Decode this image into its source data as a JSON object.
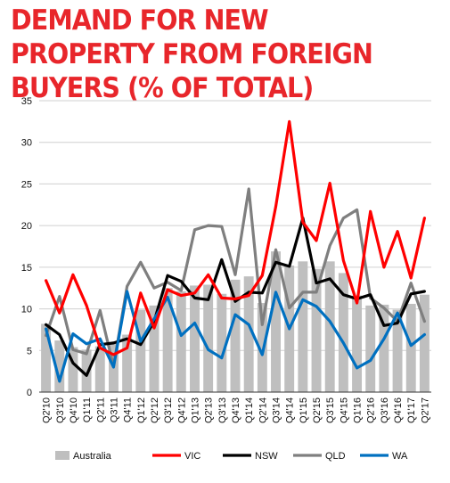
{
  "chart_data": {
    "type": "bar+line",
    "title": "DEMAND FOR NEW PROPERTY FROM FOREIGN BUYERS (% OF TOTAL)",
    "categories": [
      "Q2'10",
      "Q3'10",
      "Q4'10",
      "Q1'11",
      "Q2'11",
      "Q3'11",
      "Q4'11",
      "Q1'12",
      "Q2'12",
      "Q3'12",
      "Q4'12",
      "Q1'13",
      "Q2'13",
      "Q3'13",
      "Q4'13",
      "Q1'14",
      "Q2'14",
      "Q3'14",
      "Q4'14",
      "Q1'15",
      "Q2'15",
      "Q3'15",
      "Q4'15",
      "Q1'16",
      "Q2'16",
      "Q3'16",
      "Q4'16",
      "Q1'17",
      "Q2'17"
    ],
    "ylim": [
      0,
      35
    ],
    "yticks": [
      0,
      5,
      10,
      15,
      20,
      25,
      30,
      35
    ],
    "grid": true,
    "legend_position": "bottom",
    "bars": {
      "name": "Australia",
      "color": "#bfbfbf",
      "values": [
        8.2,
        6.2,
        5.4,
        5.1,
        5.5,
        5.8,
        6.9,
        9.9,
        10.4,
        12.5,
        12.1,
        12.8,
        12.9,
        11.8,
        13.5,
        13.9,
        10.7,
        16.9,
        15.2,
        15.7,
        14.8,
        15.7,
        14.3,
        11.6,
        10.4,
        10.5,
        9.9,
        10.6,
        11.7
      ]
    },
    "series": [
      {
        "name": "VIC",
        "color": "#ff0000",
        "values": [
          13.4,
          9.5,
          14.1,
          10.4,
          5.3,
          4.5,
          5.3,
          11.9,
          7.7,
          12.3,
          11.6,
          11.9,
          14.1,
          11.3,
          11.2,
          11.6,
          14.0,
          22.3,
          32.5,
          20.4,
          18.2,
          25.1,
          15.8,
          10.7,
          21.7,
          15.0,
          19.3,
          13.7,
          20.9
        ]
      },
      {
        "name": "NSW",
        "color": "#000000",
        "values": [
          8.1,
          6.9,
          3.5,
          2.0,
          5.7,
          5.9,
          6.4,
          5.7,
          8.5,
          14.0,
          13.3,
          11.3,
          11.1,
          15.9,
          10.9,
          12.0,
          11.9,
          15.6,
          15.1,
          20.9,
          13.1,
          13.6,
          11.7,
          11.2,
          11.7,
          8.0,
          8.3,
          11.8,
          12.1
        ]
      },
      {
        "name": "QLD",
        "color": "#7f7f7f",
        "values": [
          6.8,
          11.5,
          5.1,
          4.6,
          9.8,
          3.1,
          12.7,
          15.6,
          12.5,
          13.2,
          12.2,
          19.5,
          20.0,
          19.9,
          14.1,
          24.4,
          8.1,
          17.1,
          10.1,
          12.0,
          12.0,
          17.6,
          20.9,
          21.9,
          11.3,
          10.1,
          8.5,
          13.1,
          8.5
        ]
      },
      {
        "name": "WA",
        "color": "#0070c0",
        "values": [
          7.6,
          1.3,
          7.0,
          5.8,
          6.4,
          3.0,
          12.1,
          6.1,
          8.8,
          11.4,
          6.8,
          8.3,
          5.1,
          4.1,
          9.3,
          8.1,
          4.5,
          12.0,
          7.6,
          11.1,
          10.3,
          8.5,
          5.9,
          2.9,
          3.8,
          6.4,
          9.5,
          5.6,
          6.9
        ]
      }
    ],
    "legend": [
      "Australia",
      "VIC",
      "NSW",
      "QLD",
      "WA"
    ]
  }
}
